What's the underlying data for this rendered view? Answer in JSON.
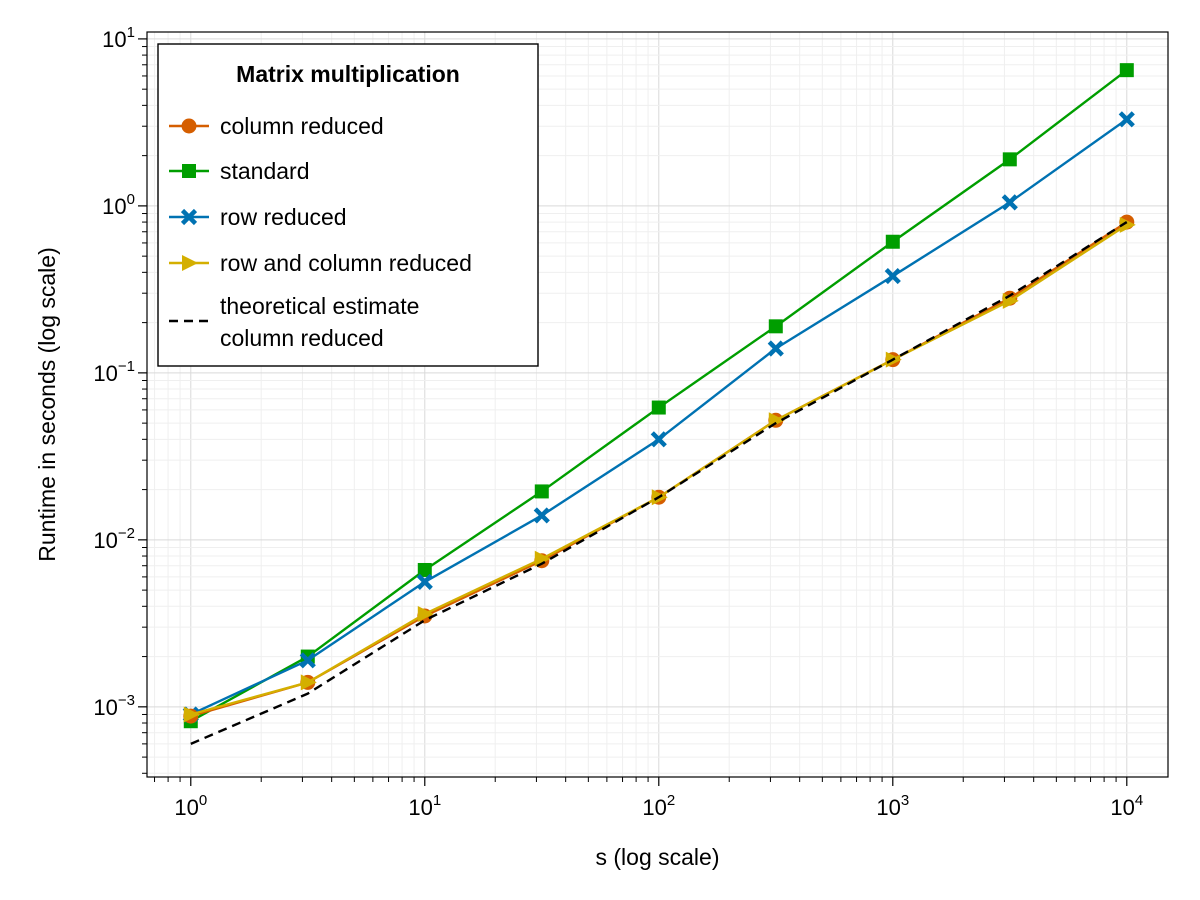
{
  "chart_data": {
    "type": "line",
    "xlabel": "s (log scale)",
    "ylabel": "Runtime in seconds (log scale)",
    "xscale": "log",
    "yscale": "log",
    "xlim": [
      0.65,
      15000
    ],
    "ylim": [
      0.00038,
      11
    ],
    "grid": true,
    "x_ticks": [
      {
        "base": "10",
        "exp": "0",
        "value": 1
      },
      {
        "base": "10",
        "exp": "1",
        "value": 10
      },
      {
        "base": "10",
        "exp": "2",
        "value": 100
      },
      {
        "base": "10",
        "exp": "3",
        "value": 1000
      },
      {
        "base": "10",
        "exp": "4",
        "value": 10000
      }
    ],
    "y_ticks": [
      {
        "base": "10",
        "exp": "−3",
        "value": 0.001
      },
      {
        "base": "10",
        "exp": "−2",
        "value": 0.01
      },
      {
        "base": "10",
        "exp": "−1",
        "value": 0.1
      },
      {
        "base": "10",
        "exp": "0",
        "value": 1
      },
      {
        "base": "10",
        "exp": "1",
        "value": 10
      }
    ],
    "legend": {
      "title": "Matrix multiplication",
      "position": "top-left"
    },
    "x": [
      1,
      3.1623,
      10,
      31.623,
      100,
      316.23,
      1000,
      3162.3,
      10000
    ],
    "series": [
      {
        "name": "column reduced",
        "legend_lines": [
          "column reduced"
        ],
        "color": "#D55E00",
        "marker": "circle",
        "dash": "solid",
        "values": [
          0.00088,
          0.0014,
          0.0035,
          0.0075,
          0.018,
          0.052,
          0.12,
          0.28,
          0.8
        ]
      },
      {
        "name": "standard",
        "legend_lines": [
          "standard"
        ],
        "color": "#009E00",
        "marker": "square",
        "dash": "solid",
        "values": [
          0.00082,
          0.002,
          0.0066,
          0.0195,
          0.062,
          0.19,
          0.61,
          1.9,
          6.5
        ]
      },
      {
        "name": "row reduced",
        "legend_lines": [
          "row reduced"
        ],
        "color": "#0072B2",
        "marker": "x",
        "dash": "solid",
        "values": [
          0.0009,
          0.0019,
          0.0056,
          0.014,
          0.04,
          0.14,
          0.38,
          1.05,
          3.3
        ]
      },
      {
        "name": "row and column reduced",
        "legend_lines": [
          "row and column reduced"
        ],
        "color": "#D4AF00",
        "marker": "triangle-right",
        "dash": "solid",
        "values": [
          0.0009,
          0.0014,
          0.0036,
          0.0077,
          0.018,
          0.052,
          0.12,
          0.27,
          0.77
        ]
      },
      {
        "name": "theoretical estimate column reduced",
        "legend_lines": [
          "theoretical estimate",
          " column reduced"
        ],
        "color": "#000000",
        "marker": "none",
        "dash": "dashed",
        "values": [
          0.0006,
          0.0012,
          0.0033,
          0.0072,
          0.018,
          0.05,
          0.12,
          0.29,
          0.8
        ]
      }
    ]
  }
}
